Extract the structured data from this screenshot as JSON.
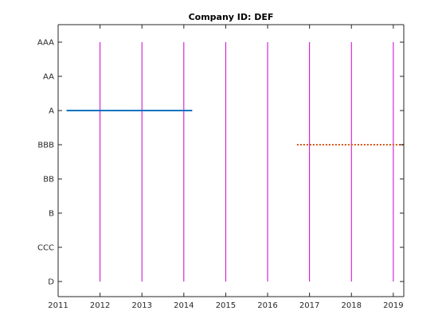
{
  "chart_data": {
    "type": "line",
    "title": "Company ID: DEF",
    "xlabel": "",
    "ylabel": "",
    "xlim": [
      2011,
      2019.25
    ],
    "x_ticks": [
      2011,
      2012,
      2013,
      2014,
      2015,
      2016,
      2017,
      2018,
      2019
    ],
    "x_tick_labels": [
      "2011",
      "2012",
      "2013",
      "2014",
      "2015",
      "2016",
      "2017",
      "2018",
      "2019"
    ],
    "y_categories": [
      "AAA",
      "AA",
      "A",
      "BBB",
      "BB",
      "B",
      "CCC",
      "D"
    ],
    "grid": false,
    "vertical_lines": {
      "color": "#cc00cc",
      "x": [
        2012,
        2013,
        2014,
        2015,
        2016,
        2017,
        2018,
        2019
      ],
      "y_from": "D",
      "y_to": "AAA"
    },
    "series": [
      {
        "style": "solid",
        "color": "#0072bd",
        "x": [
          2011.2,
          2014.2
        ],
        "y": [
          "A",
          "A"
        ]
      },
      {
        "style": "dotted",
        "color": "#d95319",
        "x": [
          2016.7,
          2019.25
        ],
        "y": [
          "BBB",
          "BBB"
        ]
      }
    ]
  }
}
